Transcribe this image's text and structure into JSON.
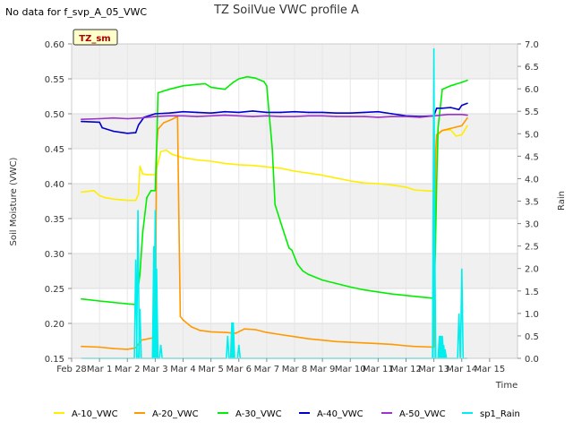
{
  "notice": "No data for f_svp_A_05_VWC",
  "chart_data": {
    "type": "line",
    "title": "TZ SoilVue VWC profile A",
    "annotation": "TZ_sm",
    "xlabel": "Time",
    "ylabel": "Soil Moisture (VWC)",
    "y2label": "Rain",
    "xlim": [
      0,
      16
    ],
    "ylim": [
      0.15,
      0.6
    ],
    "y2lim": [
      0,
      7
    ],
    "x_ticks": [
      0,
      1,
      2,
      3,
      4,
      5,
      6,
      7,
      8,
      9,
      10,
      11,
      12,
      13,
      14,
      15
    ],
    "x_tick_labels": [
      "Feb 28",
      "Mar 1",
      "Mar 2",
      "Mar 3",
      "Mar 4",
      "Mar 5",
      "Mar 6",
      "Mar 7",
      "Mar 8",
      "Mar 9",
      "Mar 10",
      "Mar 11",
      "Mar 12",
      "Mar 13",
      "Mar 14",
      "Mar 15"
    ],
    "y_ticks": [
      0.15,
      0.2,
      0.25,
      0.3,
      0.35,
      0.4,
      0.45,
      0.5,
      0.55,
      0.6
    ],
    "y_tick_labels": [
      "0.15",
      "0.20",
      "0.25",
      "0.30",
      "0.35",
      "0.40",
      "0.45",
      "0.50",
      "0.55",
      "0.60"
    ],
    "y2_ticks": [
      0,
      0.5,
      1,
      1.5,
      2,
      2.5,
      3,
      3.5,
      4,
      4.5,
      5,
      5.5,
      6,
      6.5,
      7
    ],
    "y2_tick_labels": [
      "0.0",
      "0.5",
      "1.0",
      "1.5",
      "2.0",
      "2.5",
      "3.0",
      "3.5",
      "4.0",
      "4.5",
      "5.0",
      "5.5",
      "6.0",
      "6.5",
      "7.0"
    ],
    "legend_position": "bottom",
    "series": [
      {
        "name": "A-10_VWC",
        "color": "#ffee00",
        "axis": "left",
        "x": [
          0.35,
          0.8,
          1,
          1.2,
          1.5,
          2.0,
          2.3,
          2.4,
          2.45,
          2.55,
          2.7,
          3.0,
          3.2,
          3.4,
          3.6,
          4.0,
          4.5,
          5.0,
          5.5,
          6.0,
          6.5,
          7.0,
          7.5,
          8.0,
          8.5,
          9.0,
          9.5,
          10.0,
          10.5,
          11.0,
          11.5,
          12.0,
          12.3,
          13.0,
          13.05,
          13.1,
          13.15,
          13.3,
          13.6,
          13.8,
          14.0,
          14.2
        ],
        "values": [
          0.388,
          0.39,
          0.383,
          0.38,
          0.378,
          0.376,
          0.376,
          0.385,
          0.425,
          0.414,
          0.413,
          0.413,
          0.446,
          0.448,
          0.442,
          0.437,
          0.434,
          0.432,
          0.429,
          0.427,
          0.426,
          0.424,
          0.422,
          0.418,
          0.415,
          0.412,
          0.408,
          0.404,
          0.401,
          0.4,
          0.398,
          0.395,
          0.391,
          0.389,
          0.42,
          0.455,
          0.47,
          0.476,
          0.477,
          0.468,
          0.47,
          0.483
        ]
      },
      {
        "name": "A-20_VWC",
        "color": "#ff9900",
        "axis": "left",
        "x": [
          0.35,
          1.0,
          1.5,
          2.0,
          2.3,
          2.5,
          3.0,
          3.05,
          3.1,
          3.3,
          3.6,
          3.8,
          3.85,
          3.9,
          4.0,
          4.3,
          4.6,
          5.0,
          5.5,
          5.9,
          6.2,
          6.6,
          7.0,
          7.5,
          8.0,
          8.5,
          9.0,
          9.5,
          10.0,
          10.5,
          11.0,
          11.5,
          12.0,
          12.3,
          13.0,
          13.03,
          13.06,
          13.1,
          13.3,
          13.6,
          14.0,
          14.2
        ],
        "values": [
          0.167,
          0.166,
          0.164,
          0.163,
          0.165,
          0.176,
          0.18,
          0.45,
          0.478,
          0.487,
          0.492,
          0.496,
          0.35,
          0.21,
          0.205,
          0.195,
          0.19,
          0.188,
          0.187,
          0.186,
          0.192,
          0.191,
          0.187,
          0.184,
          0.181,
          0.178,
          0.176,
          0.174,
          0.173,
          0.172,
          0.171,
          0.17,
          0.168,
          0.167,
          0.166,
          0.3,
          0.445,
          0.47,
          0.476,
          0.479,
          0.483,
          0.494
        ]
      },
      {
        "name": "A-30_VWC",
        "color": "#00ee00",
        "axis": "left",
        "x": [
          0.35,
          1.0,
          1.5,
          2.0,
          2.3,
          2.35,
          2.45,
          2.55,
          2.7,
          2.85,
          3.0,
          3.05,
          3.1,
          3.5,
          4.0,
          4.5,
          4.8,
          5.0,
          5.5,
          5.8,
          6.0,
          6.3,
          6.6,
          6.9,
          7.0,
          7.2,
          7.3,
          7.5,
          7.7,
          7.8,
          7.9,
          8.1,
          8.3,
          8.5,
          9.0,
          9.5,
          10.0,
          10.5,
          11.0,
          11.5,
          12.0,
          12.5,
          13.0,
          13.05,
          13.1,
          13.15,
          13.3,
          13.6,
          14.0,
          14.2
        ],
        "values": [
          0.235,
          0.232,
          0.23,
          0.228,
          0.227,
          0.24,
          0.27,
          0.33,
          0.38,
          0.39,
          0.39,
          0.45,
          0.53,
          0.535,
          0.54,
          0.542,
          0.543,
          0.538,
          0.535,
          0.545,
          0.55,
          0.553,
          0.551,
          0.546,
          0.54,
          0.45,
          0.37,
          0.345,
          0.32,
          0.308,
          0.305,
          0.285,
          0.275,
          0.27,
          0.262,
          0.257,
          0.252,
          0.248,
          0.245,
          0.242,
          0.24,
          0.238,
          0.236,
          0.3,
          0.4,
          0.48,
          0.535,
          0.54,
          0.545,
          0.548
        ]
      },
      {
        "name": "A-40_VWC",
        "color": "#0000cc",
        "axis": "left",
        "x": [
          0.35,
          1.0,
          1.1,
          1.5,
          2.0,
          2.3,
          2.4,
          2.6,
          3.0,
          3.5,
          4.0,
          4.5,
          5.0,
          5.5,
          6.0,
          6.5,
          7.0,
          7.5,
          8.0,
          8.5,
          9.0,
          9.5,
          10.0,
          10.5,
          11.0,
          11.5,
          12.0,
          12.5,
          13.0,
          13.1,
          13.3,
          13.6,
          13.9,
          14.0,
          14.2
        ],
        "values": [
          0.489,
          0.488,
          0.48,
          0.475,
          0.472,
          0.473,
          0.484,
          0.495,
          0.5,
          0.501,
          0.503,
          0.502,
          0.501,
          0.503,
          0.502,
          0.504,
          0.502,
          0.502,
          0.503,
          0.502,
          0.502,
          0.501,
          0.501,
          0.502,
          0.503,
          0.5,
          0.497,
          0.496,
          0.497,
          0.508,
          0.508,
          0.509,
          0.506,
          0.512,
          0.515
        ]
      },
      {
        "name": "A-50_VWC",
        "color": "#9933cc",
        "axis": "left",
        "x": [
          0.35,
          1.0,
          1.5,
          2.0,
          2.5,
          3.0,
          3.5,
          4.0,
          4.5,
          5.0,
          5.5,
          6.0,
          6.5,
          7.0,
          7.5,
          8.0,
          8.5,
          9.0,
          9.5,
          10.0,
          10.5,
          11.0,
          11.5,
          12.0,
          12.5,
          13.0,
          13.5,
          14.0,
          14.2
        ],
        "values": [
          0.492,
          0.493,
          0.494,
          0.493,
          0.494,
          0.496,
          0.497,
          0.497,
          0.496,
          0.497,
          0.498,
          0.497,
          0.496,
          0.497,
          0.496,
          0.496,
          0.497,
          0.497,
          0.496,
          0.496,
          0.496,
          0.495,
          0.496,
          0.496,
          0.495,
          0.497,
          0.499,
          0.499,
          0.498
        ]
      },
      {
        "name": "sp1_Rain",
        "color": "#00eeee",
        "axis": "right",
        "style": "spikes",
        "x": [
          2.3,
          2.38,
          2.45,
          2.95,
          3.0,
          3.05,
          3.2,
          5.6,
          5.75,
          5.8,
          6.0,
          13.0,
          13.02,
          13.2,
          13.25,
          13.3,
          13.35,
          13.4,
          13.9,
          14.0
        ],
        "values": [
          2.2,
          3.3,
          1.1,
          2.5,
          3.3,
          2.0,
          0.3,
          0.5,
          0.8,
          0.8,
          0.3,
          6.9,
          3.5,
          0.5,
          0.5,
          0.5,
          0.3,
          0.2,
          1.0,
          2.0
        ]
      }
    ]
  }
}
